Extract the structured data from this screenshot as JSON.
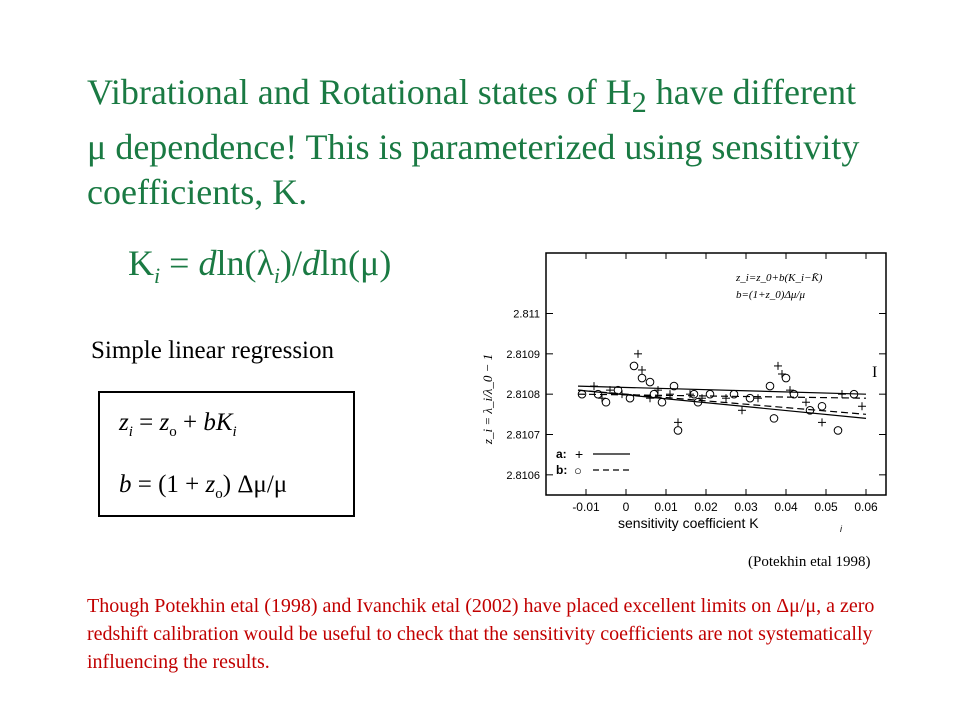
{
  "slide": {
    "title_line1_a": "Vibrational and Rotational states of H",
    "title_line1_sub": "2",
    "title_line1_b": " have different",
    "title_line2_mu": "μ",
    "title_line2_b": " dependence!  This is parameterized using sensitivity",
    "title_line3": "coefficients, K.",
    "formula": {
      "k": "K",
      "k_sub": "i",
      "eq": " = ",
      "d1": "d",
      "ln_lambda_open": "ln(",
      "lambda": "λ",
      "lambda_sub": "i",
      "close_div": ")/",
      "d2": "d",
      "ln_mu_open": "ln(",
      "mu": "μ",
      "close": ")"
    },
    "regression_label": "Simple linear regression",
    "equation_box": {
      "eq1": {
        "z": "z",
        "z_sub": "i",
        "mid": " = ",
        "zo": "z",
        "zo_sub": "o",
        "plus": " + ",
        "b": "b",
        "K": "K",
        "K_sub": "i"
      },
      "eq2": {
        "b": "b",
        "mid": " = (1 + ",
        "zo": "z",
        "zo_sub": "o",
        "rest": ") Δμ/μ"
      }
    },
    "credit": "(Potekhin etal 1998)",
    "note": "Though Potekhin etal (1998) and Ivanchik etal (2002) have placed excellent limits on Δμ/μ, a zero redshift calibration would be useful to check that the sensitivity coefficients are not systematically influencing the results."
  },
  "colors": {
    "title": "#1a7a43",
    "note": "#c10000"
  },
  "chart_data": {
    "type": "scatter",
    "xlabel": "sensitivity coefficient K",
    "xlabel_sub": "i",
    "ylabel": "z_i = λ_i/λ_0 − 1",
    "xlim": [
      -0.02,
      0.065
    ],
    "ylim": [
      2.81055,
      2.81115
    ],
    "xticks": [
      -0.01,
      0,
      0.01,
      0.02,
      0.03,
      0.04,
      0.05,
      0.06
    ],
    "xtick_labels": [
      "-0.01",
      "0",
      "0.01",
      "0.02",
      "0.03",
      "0.04",
      "0.05",
      "0.06"
    ],
    "yticks": [
      2.8106,
      2.8107,
      2.8108,
      2.8109,
      2.811
    ],
    "ytick_labels": [
      "2.8106",
      "2.8107",
      "2.8108",
      "2.8109",
      "2.811"
    ],
    "inset_eq1": "z_i=z_0+b(K_i−K̄)",
    "inset_eq2": "b=(1+z_0)Δμ/μ",
    "marker_label": "I",
    "legend": [
      {
        "key": "a:",
        "marker": "+",
        "line": "solid"
      },
      {
        "key": "b:",
        "marker": "○",
        "line": "dashed"
      }
    ],
    "fit_lines": [
      {
        "series": "a",
        "style": "solid",
        "x": [
          -0.012,
          0.06
        ],
        "y": [
          2.81082,
          2.8108
        ]
      },
      {
        "series": "a",
        "style": "solid",
        "x": [
          -0.012,
          0.06
        ],
        "y": [
          2.81081,
          2.81074
        ]
      },
      {
        "series": "b",
        "style": "dashed",
        "x": [
          -0.012,
          0.06
        ],
        "y": [
          2.8108,
          2.81079
        ]
      },
      {
        "series": "b",
        "style": "dashed",
        "x": [
          -0.012,
          0.06
        ],
        "y": [
          2.81081,
          2.81075
        ]
      }
    ],
    "series": [
      {
        "name": "a",
        "marker": "+",
        "points": [
          [
            -0.008,
            2.81082
          ],
          [
            -0.006,
            2.81079
          ],
          [
            -0.004,
            2.81081
          ],
          [
            -0.001,
            2.8108
          ],
          [
            0.003,
            2.8109
          ],
          [
            0.004,
            2.81086
          ],
          [
            0.006,
            2.81079
          ],
          [
            0.008,
            2.81081
          ],
          [
            0.011,
            2.8108
          ],
          [
            0.013,
            2.81073
          ],
          [
            0.016,
            2.8108
          ],
          [
            0.019,
            2.81079
          ],
          [
            0.025,
            2.81079
          ],
          [
            0.029,
            2.81076
          ],
          [
            0.033,
            2.81079
          ],
          [
            0.038,
            2.81087
          ],
          [
            0.039,
            2.81085
          ],
          [
            0.041,
            2.81081
          ],
          [
            0.045,
            2.81078
          ],
          [
            0.049,
            2.81073
          ],
          [
            0.054,
            2.8108
          ],
          [
            0.059,
            2.81077
          ]
        ]
      },
      {
        "name": "b",
        "marker": "o",
        "points": [
          [
            -0.011,
            2.8108
          ],
          [
            -0.007,
            2.8108
          ],
          [
            -0.005,
            2.81078
          ],
          [
            -0.002,
            2.81081
          ],
          [
            0.001,
            2.81079
          ],
          [
            0.002,
            2.81087
          ],
          [
            0.004,
            2.81084
          ],
          [
            0.006,
            2.81083
          ],
          [
            0.007,
            2.8108
          ],
          [
            0.009,
            2.81078
          ],
          [
            0.012,
            2.81082
          ],
          [
            0.013,
            2.81071
          ],
          [
            0.017,
            2.8108
          ],
          [
            0.018,
            2.81078
          ],
          [
            0.021,
            2.8108
          ],
          [
            0.027,
            2.8108
          ],
          [
            0.031,
            2.81079
          ],
          [
            0.036,
            2.81082
          ],
          [
            0.037,
            2.81074
          ],
          [
            0.04,
            2.81084
          ],
          [
            0.042,
            2.8108
          ],
          [
            0.046,
            2.81076
          ],
          [
            0.049,
            2.81077
          ],
          [
            0.053,
            2.81071
          ],
          [
            0.057,
            2.8108
          ]
        ]
      }
    ]
  }
}
